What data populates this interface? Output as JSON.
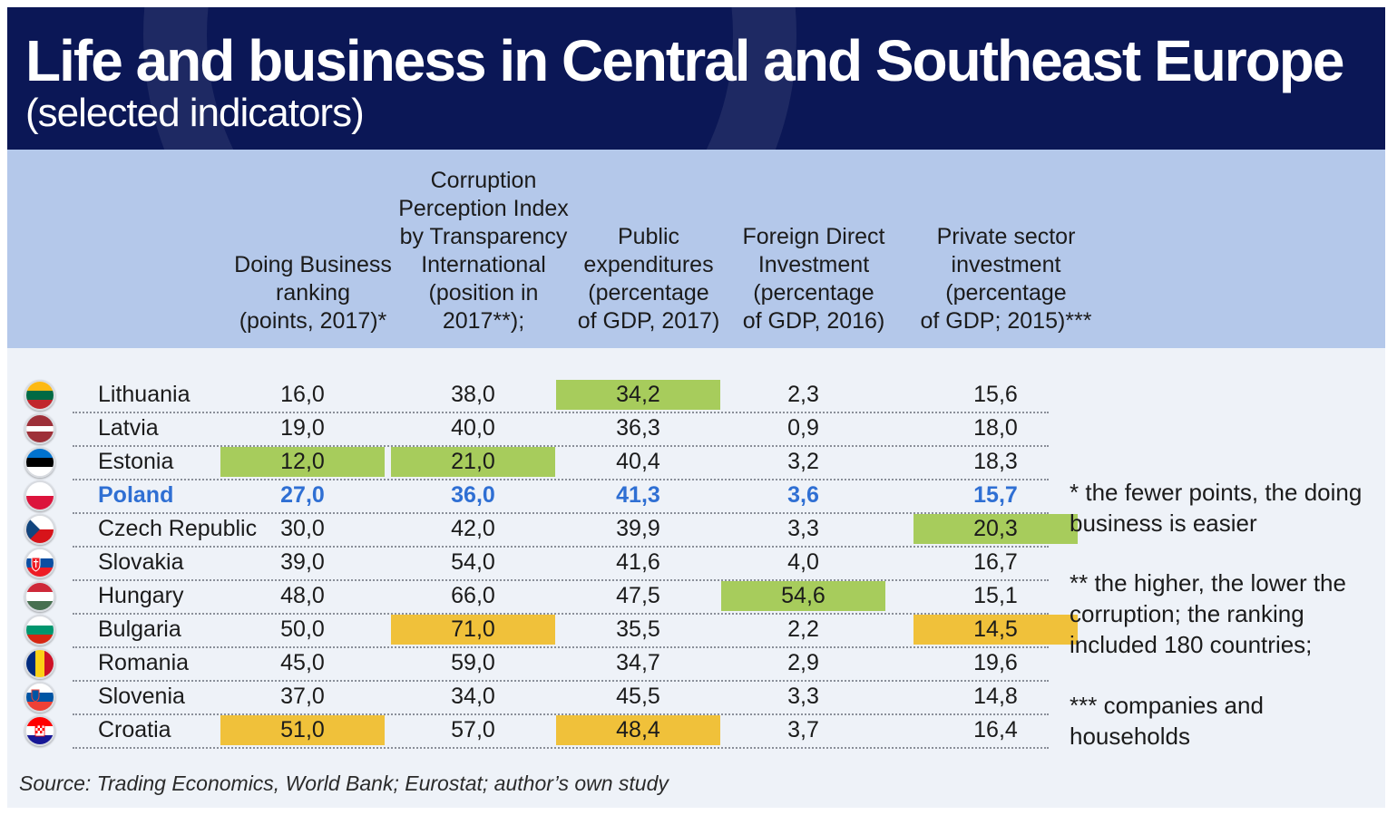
{
  "header": {
    "title": "Life and business in Central and Southeast Europe",
    "subtitle": "(selected indicators)"
  },
  "columns": [
    "Doing Business\nranking\n(points, 2017)*",
    "Corruption\nPerception Index\nby Transparency\nInternational\n(position in\n2017**);",
    "Public\nexpenditures\n(percentage\nof GDP, 2017)",
    "Foreign Direct\nInvestment\n(percentage\nof GDP, 2016)",
    "Private sector\ninvestment\n(percentage\nof GDP; 2015)***"
  ],
  "rows": [
    {
      "country": "Lithuania",
      "flag": "flag-lithuania",
      "values": [
        "16,0",
        "38,0",
        "34,2",
        "2,3",
        "15,6"
      ],
      "highlight": [
        null,
        null,
        "green",
        null,
        null
      ]
    },
    {
      "country": "Latvia",
      "flag": "flag-latvia",
      "values": [
        "19,0",
        "40,0",
        "36,3",
        "0,9",
        "18,0"
      ],
      "highlight": [
        null,
        null,
        null,
        null,
        null
      ]
    },
    {
      "country": "Estonia",
      "flag": "flag-estonia",
      "values": [
        "12,0",
        "21,0",
        "40,4",
        "3,2",
        "18,3"
      ],
      "highlight": [
        "green",
        "green",
        null,
        null,
        null
      ]
    },
    {
      "country": "Poland",
      "flag": "flag-poland",
      "values": [
        "27,0",
        "36,0",
        "41,3",
        "3,6",
        "15,7"
      ],
      "highlight": [
        null,
        null,
        null,
        null,
        null
      ],
      "emphasis": true
    },
    {
      "country": "Czech Republic",
      "flag": "flag-czech-republic",
      "values": [
        "30,0",
        "42,0",
        "39,9",
        "3,3",
        "20,3"
      ],
      "highlight": [
        null,
        null,
        null,
        null,
        "green"
      ]
    },
    {
      "country": "Slovakia",
      "flag": "flag-slovakia",
      "values": [
        "39,0",
        "54,0",
        "41,6",
        "4,0",
        "16,7"
      ],
      "highlight": [
        null,
        null,
        null,
        null,
        null
      ]
    },
    {
      "country": "Hungary",
      "flag": "flag-hungary",
      "values": [
        "48,0",
        "66,0",
        "47,5",
        "54,6",
        "15,1"
      ],
      "highlight": [
        null,
        null,
        null,
        "green",
        null
      ]
    },
    {
      "country": "Bulgaria",
      "flag": "flag-bulgaria",
      "values": [
        "50,0",
        "71,0",
        "35,5",
        "2,2",
        "14,5"
      ],
      "highlight": [
        null,
        "yellow",
        null,
        null,
        "yellow"
      ]
    },
    {
      "country": "Romania",
      "flag": "flag-romania",
      "values": [
        "45,0",
        "59,0",
        "34,7",
        "2,9",
        "19,6"
      ],
      "highlight": [
        null,
        null,
        null,
        null,
        null
      ]
    },
    {
      "country": "Slovenia",
      "flag": "flag-slovenia",
      "values": [
        "37,0",
        "34,0",
        "45,5",
        "3,3",
        "14,8"
      ],
      "highlight": [
        null,
        null,
        null,
        null,
        null
      ]
    },
    {
      "country": "Croatia",
      "flag": "flag-croatia",
      "values": [
        "51,0",
        "57,0",
        "48,4",
        "3,7",
        "16,4"
      ],
      "highlight": [
        "yellow",
        null,
        "yellow",
        null,
        null
      ]
    }
  ],
  "notes": [
    "* the fewer points, the doing business is easier",
    "** the higher, the lower the corruption; the ranking included 180 countries;",
    "*** companies and households"
  ],
  "source": "Source: Trading Economics, World Bank; Eurostat; author’s own study",
  "colors": {
    "header_bg": "#0b1756",
    "column_header_bg": "#b4c8ea",
    "table_bg": "#eef2f8",
    "highlight_green": "#a7cc5c",
    "highlight_yellow": "#f0c13a",
    "poland_text": "#2f6fd3"
  }
}
